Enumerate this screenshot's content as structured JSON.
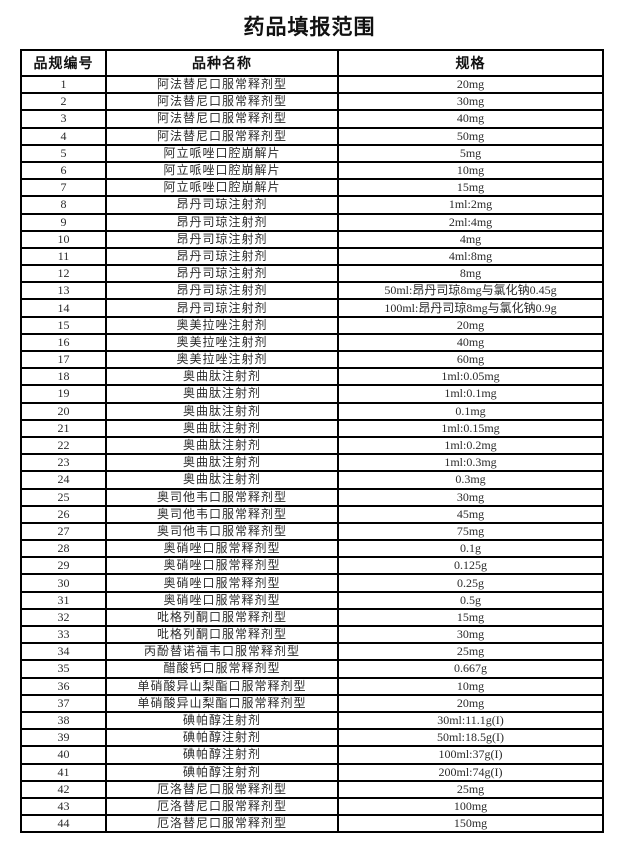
{
  "page": {
    "title": "药品填报范围"
  },
  "colors": {
    "border": "#000000",
    "text": "#2a2a2a",
    "background": "#ffffff"
  },
  "table": {
    "headers": [
      "品规编号",
      "品种名称",
      "规格"
    ],
    "rows": [
      [
        "1",
        "阿法替尼口服常释剂型",
        "20mg"
      ],
      [
        "2",
        "阿法替尼口服常释剂型",
        "30mg"
      ],
      [
        "3",
        "阿法替尼口服常释剂型",
        "40mg"
      ],
      [
        "4",
        "阿法替尼口服常释剂型",
        "50mg"
      ],
      [
        "5",
        "阿立哌唑口腔崩解片",
        "5mg"
      ],
      [
        "6",
        "阿立哌唑口腔崩解片",
        "10mg"
      ],
      [
        "7",
        "阿立哌唑口腔崩解片",
        "15mg"
      ],
      [
        "8",
        "昂丹司琼注射剂",
        "1ml:2mg"
      ],
      [
        "9",
        "昂丹司琼注射剂",
        "2ml:4mg"
      ],
      [
        "10",
        "昂丹司琼注射剂",
        "4mg"
      ],
      [
        "11",
        "昂丹司琼注射剂",
        "4ml:8mg"
      ],
      [
        "12",
        "昂丹司琼注射剂",
        "8mg"
      ],
      [
        "13",
        "昂丹司琼注射剂",
        "50ml:昂丹司琼8mg与氯化钠0.45g"
      ],
      [
        "14",
        "昂丹司琼注射剂",
        "100ml:昂丹司琼8mg与氯化钠0.9g"
      ],
      [
        "15",
        "奥美拉唑注射剂",
        "20mg"
      ],
      [
        "16",
        "奥美拉唑注射剂",
        "40mg"
      ],
      [
        "17",
        "奥美拉唑注射剂",
        "60mg"
      ],
      [
        "18",
        "奥曲肽注射剂",
        "1ml:0.05mg"
      ],
      [
        "19",
        "奥曲肽注射剂",
        "1ml:0.1mg"
      ],
      [
        "20",
        "奥曲肽注射剂",
        "0.1mg"
      ],
      [
        "21",
        "奥曲肽注射剂",
        "1ml:0.15mg"
      ],
      [
        "22",
        "奥曲肽注射剂",
        "1ml:0.2mg"
      ],
      [
        "23",
        "奥曲肽注射剂",
        "1ml:0.3mg"
      ],
      [
        "24",
        "奥曲肽注射剂",
        "0.3mg"
      ],
      [
        "25",
        "奥司他韦口服常释剂型",
        "30mg"
      ],
      [
        "26",
        "奥司他韦口服常释剂型",
        "45mg"
      ],
      [
        "27",
        "奥司他韦口服常释剂型",
        "75mg"
      ],
      [
        "28",
        "奥硝唑口服常释剂型",
        "0.1g"
      ],
      [
        "29",
        "奥硝唑口服常释剂型",
        "0.125g"
      ],
      [
        "30",
        "奥硝唑口服常释剂型",
        "0.25g"
      ],
      [
        "31",
        "奥硝唑口服常释剂型",
        "0.5g"
      ],
      [
        "32",
        "吡格列酮口服常释剂型",
        "15mg"
      ],
      [
        "33",
        "吡格列酮口服常释剂型",
        "30mg"
      ],
      [
        "34",
        "丙酚替诺福韦口服常释剂型",
        "25mg"
      ],
      [
        "35",
        "醋酸钙口服常释剂型",
        "0.667g"
      ],
      [
        "36",
        "单硝酸异山梨酯口服常释剂型",
        "10mg"
      ],
      [
        "37",
        "单硝酸异山梨酯口服常释剂型",
        "20mg"
      ],
      [
        "38",
        "碘帕醇注射剂",
        "30ml:11.1g(I)"
      ],
      [
        "39",
        "碘帕醇注射剂",
        "50ml:18.5g(I)"
      ],
      [
        "40",
        "碘帕醇注射剂",
        "100ml:37g(I)"
      ],
      [
        "41",
        "碘帕醇注射剂",
        "200ml:74g(I)"
      ],
      [
        "42",
        "厄洛替尼口服常释剂型",
        "25mg"
      ],
      [
        "43",
        "厄洛替尼口服常释剂型",
        "100mg"
      ],
      [
        "44",
        "厄洛替尼口服常释剂型",
        "150mg"
      ]
    ]
  }
}
